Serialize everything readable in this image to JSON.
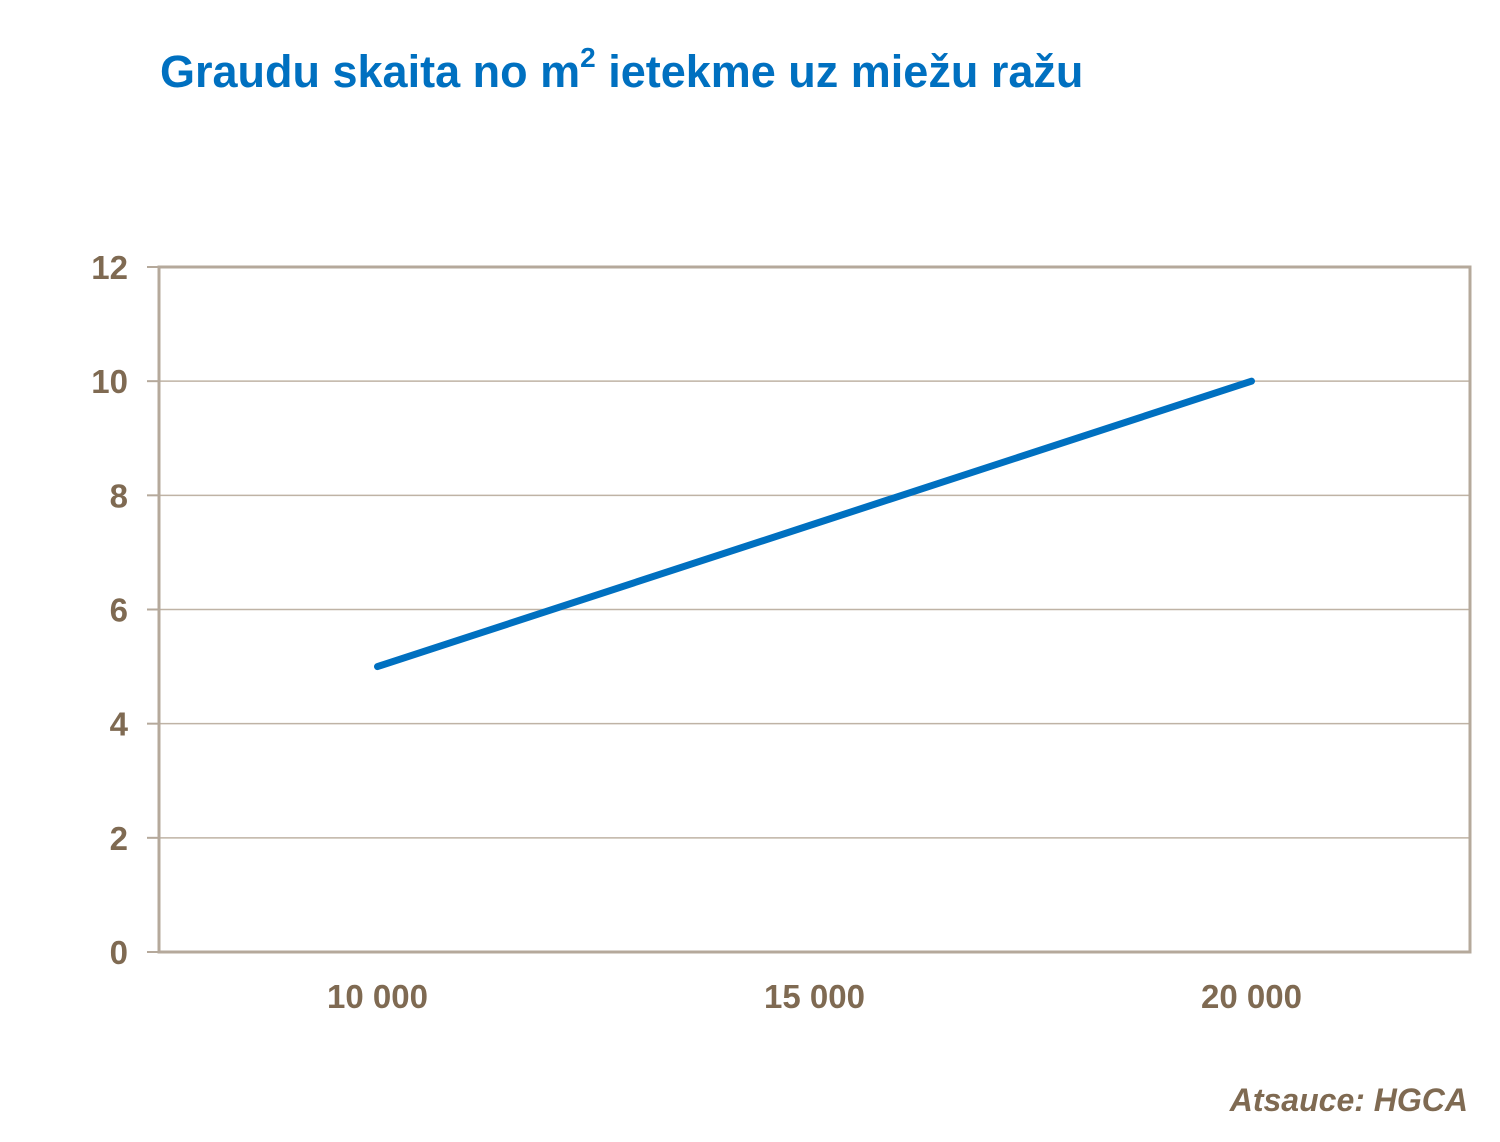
{
  "title": {
    "main": "Graudu skaita no m",
    "superscript": "2",
    "rest": " ietekme uz miežu ražu"
  },
  "source": "Atsauce: HGCA",
  "colors": {
    "title": "#0070C0",
    "line": "#0070C0",
    "axis_text": "#7F6A52",
    "grid": "#BFB3A5",
    "frame": "#B5A99B"
  },
  "chart_data": {
    "type": "line",
    "title": "Graudu skaita no m2 ietekme uz miežu ražu",
    "categories": [
      "10 000",
      "15 000",
      "20 000"
    ],
    "series": [
      {
        "values": [
          5,
          7.5,
          10
        ]
      }
    ],
    "ylim": [
      0,
      12
    ],
    "yticks": [
      0,
      2,
      4,
      6,
      8,
      10,
      12
    ],
    "grid": true,
    "legend": "none"
  }
}
